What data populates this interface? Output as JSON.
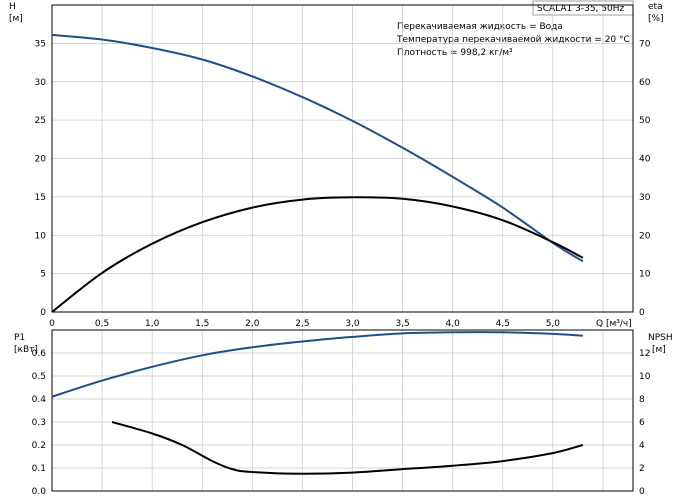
{
  "chart_data": [
    {
      "type": "line",
      "model_label": "SCALA1 3-35, 50Hz",
      "info_lines": [
        "Перекачиваемая жидкость = Вода",
        "Температура перекачиваемой жидкости = 20 °C",
        "Плотность = 998,2 кг/м³"
      ],
      "xlabel": "Q [м³/ч]",
      "xlim": [
        0,
        5.8
      ],
      "x_ticks": [
        "0",
        "0,5",
        "1,0",
        "1,5",
        "2,0",
        "2,5",
        "3,0",
        "3,5",
        "4,0",
        "4,5",
        "5,0"
      ],
      "left_axis": {
        "label_top": "H",
        "label_unit": "[м]",
        "ylim": [
          0,
          40
        ],
        "ticks": [
          "0",
          "5",
          "10",
          "15",
          "20",
          "25",
          "30",
          "35"
        ]
      },
      "right_axis": {
        "label_top": "eta",
        "label_unit": "[%]",
        "ylim": [
          0,
          80
        ],
        "ticks": [
          "0",
          "10",
          "20",
          "30",
          "40",
          "50",
          "60",
          "70"
        ]
      },
      "grid": true,
      "series": [
        {
          "axis": "left",
          "color": "#1f4e8c",
          "x": [
            0,
            0.5,
            1.0,
            1.5,
            2.0,
            2.5,
            3.0,
            3.5,
            4.0,
            4.5,
            5.0,
            5.3
          ],
          "y": [
            36.1,
            35.5,
            34.4,
            32.9,
            30.7,
            28.0,
            24.9,
            21.4,
            17.6,
            13.6,
            9.0,
            6.6
          ]
        },
        {
          "axis": "right",
          "color": "#000000",
          "x": [
            0,
            0.5,
            1.0,
            1.5,
            2.0,
            2.5,
            3.0,
            3.5,
            4.0,
            4.5,
            5.0,
            5.3
          ],
          "y": [
            0,
            10.2,
            17.8,
            23.4,
            27.2,
            29.3,
            29.9,
            29.5,
            27.5,
            23.9,
            18.2,
            14.1
          ]
        }
      ]
    },
    {
      "type": "line",
      "xlim": [
        0,
        5.8
      ],
      "left_axis": {
        "label_top": "P1",
        "label_unit": "[кВт]",
        "ylim": [
          0,
          0.7
        ],
        "ticks": [
          "0.0",
          "0.1",
          "0.2",
          "0.3",
          "0.4",
          "0.5",
          "0.6"
        ]
      },
      "right_axis": {
        "label_top": "NPSH",
        "label_unit": "[м]",
        "ylim": [
          0,
          14
        ],
        "ticks": [
          "0",
          "2",
          "4",
          "6",
          "8",
          "10",
          "12"
        ]
      },
      "grid": true,
      "series": [
        {
          "axis": "left",
          "color": "#1f4e8c",
          "x": [
            0,
            0.5,
            1.0,
            1.5,
            2.0,
            2.5,
            3.0,
            3.5,
            4.0,
            4.5,
            5.0,
            5.3
          ],
          "y": [
            0.41,
            0.48,
            0.54,
            0.59,
            0.625,
            0.65,
            0.67,
            0.685,
            0.69,
            0.69,
            0.683,
            0.675
          ]
        },
        {
          "axis": "right",
          "color": "#000000",
          "x": [
            0.6,
            1.0,
            1.3,
            1.6,
            1.8,
            2.0,
            2.5,
            3.0,
            3.5,
            4.0,
            4.5,
            5.0,
            5.3
          ],
          "y": [
            6.0,
            5.0,
            4.0,
            2.6,
            1.9,
            1.65,
            1.5,
            1.6,
            1.9,
            2.2,
            2.6,
            3.3,
            4.0
          ]
        }
      ]
    }
  ]
}
